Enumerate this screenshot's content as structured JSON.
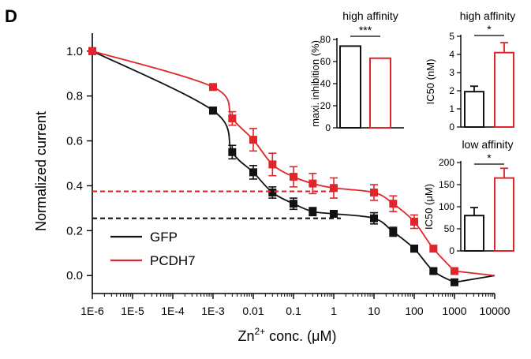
{
  "panel_label": "D",
  "chart_data": [
    {
      "type": "scatter",
      "title": "",
      "xlabel_main": "Zn",
      "xlabel_sup": "2+",
      "xlabel_rest": " conc. (μM)",
      "ylabel": "Normalized current",
      "x_scale": "log",
      "xlim": [
        1e-06,
        10000
      ],
      "ylim": [
        -0.08,
        1.08
      ],
      "x_ticks": [
        {
          "v": 1e-06,
          "label": "1E-6"
        },
        {
          "v": 1e-05,
          "label": "1E-5"
        },
        {
          "v": 0.0001,
          "label": "1E-4"
        },
        {
          "v": 0.001,
          "label": "1E-3"
        },
        {
          "v": 0.01,
          "label": "0.01"
        },
        {
          "v": 0.1,
          "label": "0.1"
        },
        {
          "v": 1,
          "label": "1"
        },
        {
          "v": 10,
          "label": "10"
        },
        {
          "v": 100,
          "label": "100"
        },
        {
          "v": 1000,
          "label": "1000"
        },
        {
          "v": 10000,
          "label": "10000"
        }
      ],
      "y_ticks": [
        {
          "v": 0.0,
          "label": "0.0"
        },
        {
          "v": 0.2,
          "label": "0.2"
        },
        {
          "v": 0.4,
          "label": "0.4"
        },
        {
          "v": 0.6,
          "label": "0.6"
        },
        {
          "v": 0.8,
          "label": "0.8"
        },
        {
          "v": 1.0,
          "label": "1.0"
        }
      ],
      "legend_position": "bottom-left",
      "series": [
        {
          "name": "GFP",
          "color": "#111111",
          "points": [
            {
              "x": 1e-06,
              "y": 1.0,
              "err": 0
            },
            {
              "x": 0.001,
              "y": 0.735,
              "err": 0.015
            },
            {
              "x": 0.003,
              "y": 0.55,
              "err": 0.03
            },
            {
              "x": 0.01,
              "y": 0.46,
              "err": 0.03
            },
            {
              "x": 0.03,
              "y": 0.37,
              "err": 0.025
            },
            {
              "x": 0.1,
              "y": 0.32,
              "err": 0.025
            },
            {
              "x": 0.3,
              "y": 0.285,
              "err": 0.018
            },
            {
              "x": 1,
              "y": 0.275,
              "err": 0.012
            },
            {
              "x": 10,
              "y": 0.255,
              "err": 0.025
            },
            {
              "x": 30,
              "y": 0.195,
              "err": 0.02
            },
            {
              "x": 100,
              "y": 0.12,
              "err": 0.015
            },
            {
              "x": 300,
              "y": 0.02,
              "err": 0.01
            },
            {
              "x": 1000,
              "y": -0.03,
              "err": 0.01
            }
          ],
          "reference_level": 0.255
        },
        {
          "name": "PCDH7",
          "color": "#e0262b",
          "points": [
            {
              "x": 1e-06,
              "y": 1.0,
              "err": 0
            },
            {
              "x": 0.001,
              "y": 0.84,
              "err": 0.012
            },
            {
              "x": 0.003,
              "y": 0.7,
              "err": 0.03
            },
            {
              "x": 0.01,
              "y": 0.605,
              "err": 0.05
            },
            {
              "x": 0.03,
              "y": 0.495,
              "err": 0.05
            },
            {
              "x": 0.1,
              "y": 0.44,
              "err": 0.045
            },
            {
              "x": 0.3,
              "y": 0.41,
              "err": 0.045
            },
            {
              "x": 1,
              "y": 0.39,
              "err": 0.045
            },
            {
              "x": 10,
              "y": 0.37,
              "err": 0.035
            },
            {
              "x": 30,
              "y": 0.32,
              "err": 0.035
            },
            {
              "x": 100,
              "y": 0.24,
              "err": 0.03
            },
            {
              "x": 300,
              "y": 0.12,
              "err": 0
            },
            {
              "x": 1000,
              "y": 0.02,
              "err": 0.01
            }
          ],
          "reference_level": 0.375
        }
      ]
    },
    {
      "type": "bar",
      "title": "high affinity",
      "ylabel": "maxi. inhibition (%)",
      "ylim": [
        0,
        80
      ],
      "y_ticks": [
        0,
        20,
        40,
        60,
        80
      ],
      "categories": [
        "GFP",
        "PCDH7"
      ],
      "values": [
        74,
        63
      ],
      "errors": [
        0,
        0
      ],
      "colors": [
        "#111111",
        "#e0262b"
      ],
      "significance": "***"
    },
    {
      "type": "bar",
      "title": "high affinity",
      "ylabel": "IC50 (nM)",
      "ylim": [
        0,
        5
      ],
      "y_ticks": [
        0,
        1,
        2,
        3,
        4,
        5
      ],
      "categories": [
        "GFP",
        "PCDH7"
      ],
      "values": [
        1.95,
        4.1
      ],
      "errors": [
        0.3,
        0.55
      ],
      "colors": [
        "#111111",
        "#e0262b"
      ],
      "significance": "*"
    },
    {
      "type": "bar",
      "title": "low affinity",
      "ylabel": "IC50 (μM)",
      "ylim": [
        0,
        200
      ],
      "y_ticks": [
        0,
        50,
        100,
        150,
        200
      ],
      "categories": [
        "GFP",
        "PCDH7"
      ],
      "values": [
        80,
        165
      ],
      "errors": [
        18,
        22
      ],
      "colors": [
        "#111111",
        "#e0262b"
      ],
      "significance": "*"
    }
  ]
}
